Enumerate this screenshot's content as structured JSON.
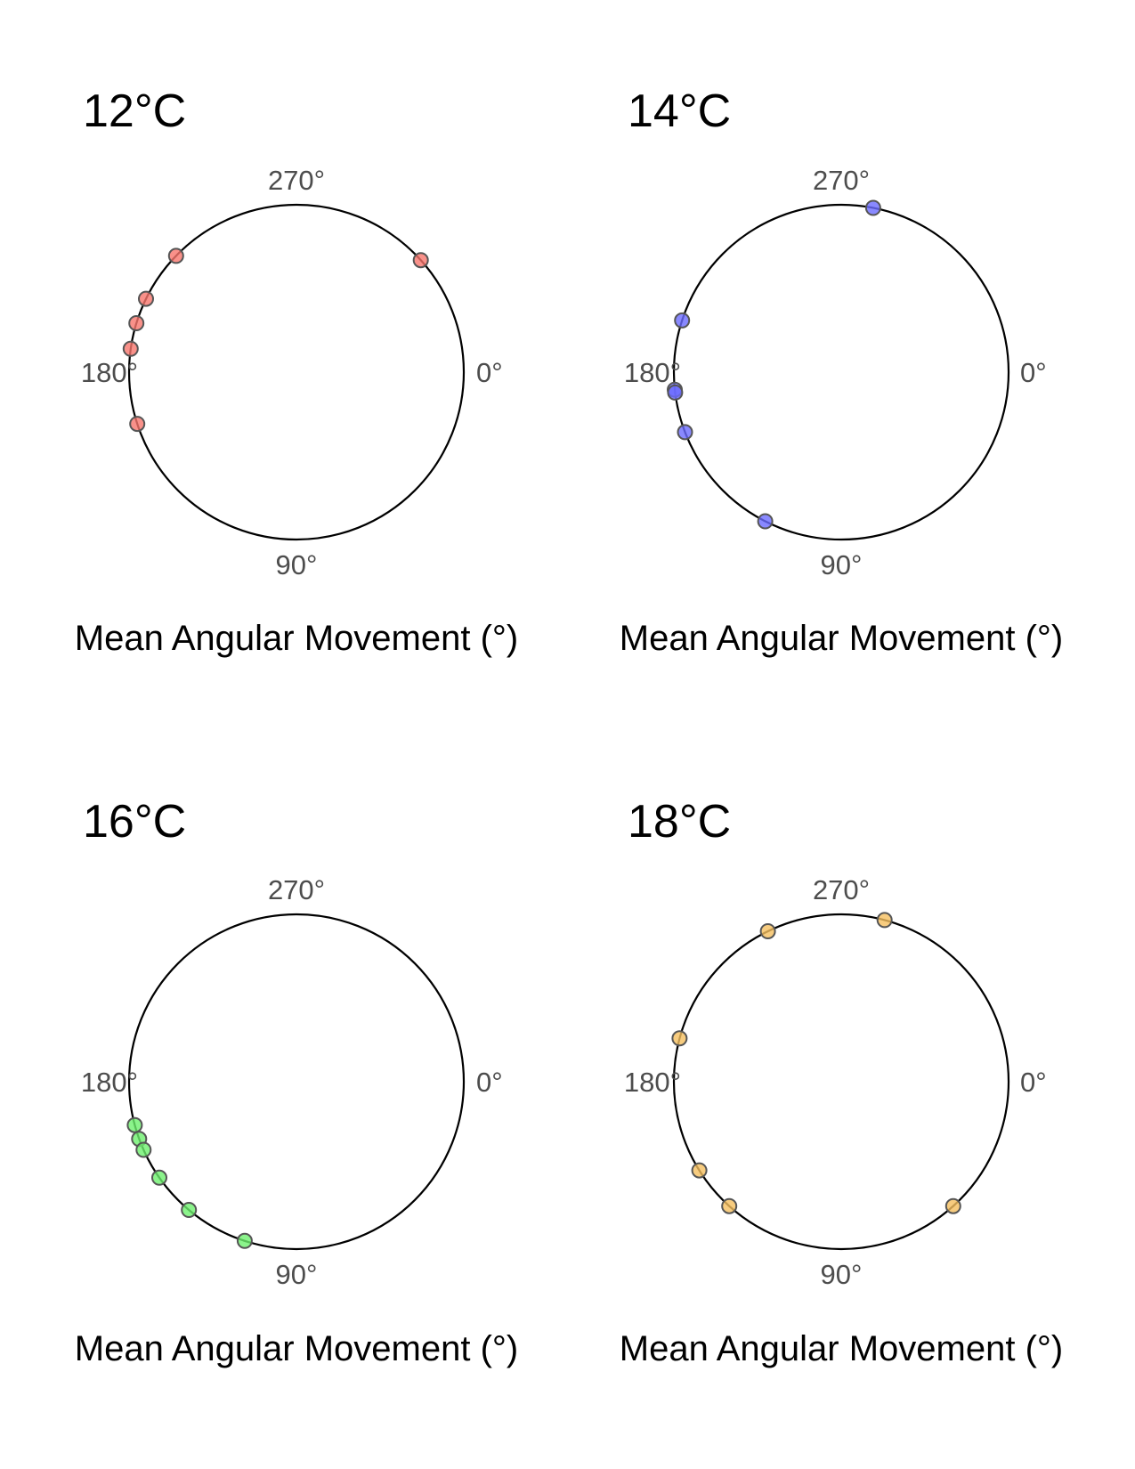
{
  "chart_data": [
    {
      "type": "scatter",
      "title": "12°C",
      "xlabel": "Mean Angular Movement (°)",
      "angle_labels": [
        "0°",
        "90°",
        "180°",
        "270°"
      ],
      "angle_range": [
        0,
        360
      ],
      "direction": "clockwise",
      "zero_at": "right",
      "grid": false,
      "point_color": "#f8766d",
      "values": [
        318,
        224,
        206,
        197,
        188,
        162
      ]
    },
    {
      "type": "scatter",
      "title": "14°C",
      "xlabel": "Mean Angular Movement (°)",
      "angle_labels": [
        "0°",
        "90°",
        "180°",
        "270°"
      ],
      "angle_range": [
        0,
        360
      ],
      "direction": "clockwise",
      "zero_at": "right",
      "grid": false,
      "point_color": "#6b6bff",
      "values": [
        281,
        198,
        174,
        173,
        159,
        117
      ]
    },
    {
      "type": "scatter",
      "title": "16°C",
      "xlabel": "Mean Angular Movement (°)",
      "angle_labels": [
        "0°",
        "90°",
        "180°",
        "270°"
      ],
      "angle_range": [
        0,
        360
      ],
      "direction": "clockwise",
      "zero_at": "right",
      "grid": false,
      "point_color": "#6ef06e",
      "values": [
        165,
        160,
        156,
        145,
        130,
        108
      ]
    },
    {
      "type": "scatter",
      "title": "18°C",
      "xlabel": "Mean Angular Movement (°)",
      "angle_labels": [
        "0°",
        "90°",
        "180°",
        "270°"
      ],
      "angle_range": [
        0,
        360
      ],
      "direction": "clockwise",
      "zero_at": "right",
      "grid": false,
      "point_color": "#f5bf5f",
      "values": [
        285,
        244,
        195,
        148,
        132,
        48
      ]
    }
  ]
}
